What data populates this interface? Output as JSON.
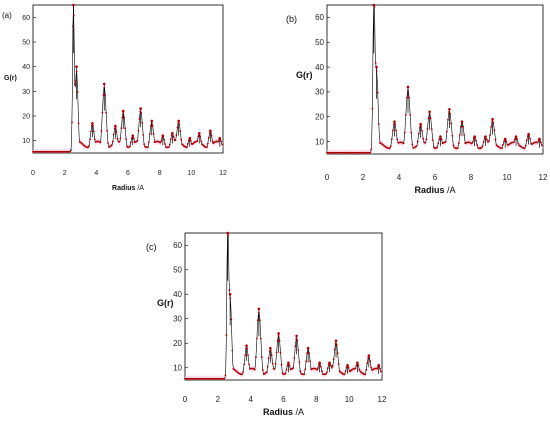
{
  "chart_data": [
    {
      "type": "line",
      "panel_label": "(a)",
      "xlabel": "Radius",
      "xunit": "/A",
      "ylabel": "G(r)",
      "xlim": [
        0,
        12
      ],
      "ylim": [
        5,
        65
      ],
      "xticks": [
        "0",
        "2",
        "4",
        "6",
        "8",
        "10",
        "12"
      ],
      "yticks": [
        "10",
        "20",
        "30",
        "40",
        "50",
        "60"
      ],
      "series_color": "#b00000",
      "baseline": 5.5,
      "start_r": 2.35,
      "peaks": [
        {
          "r": 2.55,
          "g": 65
        },
        {
          "r": 2.75,
          "g": 40
        },
        {
          "r": 3.75,
          "g": 17
        },
        {
          "r": 4.5,
          "g": 33
        },
        {
          "r": 5.2,
          "g": 16
        },
        {
          "r": 5.7,
          "g": 22
        },
        {
          "r": 6.3,
          "g": 12
        },
        {
          "r": 6.8,
          "g": 23
        },
        {
          "r": 7.5,
          "g": 18
        },
        {
          "r": 8.2,
          "g": 12
        },
        {
          "r": 8.8,
          "g": 13
        },
        {
          "r": 9.2,
          "g": 18
        },
        {
          "r": 9.9,
          "g": 11
        },
        {
          "r": 10.5,
          "g": 13
        },
        {
          "r": 11.2,
          "g": 14
        },
        {
          "r": 11.8,
          "g": 11
        }
      ]
    },
    {
      "type": "line",
      "panel_label": "(b)",
      "xlabel": "Radius",
      "xunit": "/A",
      "ylabel": "G(r)",
      "xlim": [
        0,
        12
      ],
      "ylim": [
        5,
        65
      ],
      "xticks": [
        "0",
        "2",
        "4",
        "6",
        "8",
        "10",
        "12"
      ],
      "yticks": [
        "10",
        "20",
        "30",
        "40",
        "50",
        "60"
      ],
      "series_color": "#b00000",
      "baseline": 5.5,
      "start_r": 2.4,
      "peaks": [
        {
          "r": 2.6,
          "g": 65
        },
        {
          "r": 2.75,
          "g": 40
        },
        {
          "r": 3.75,
          "g": 18
        },
        {
          "r": 4.5,
          "g": 32
        },
        {
          "r": 5.2,
          "g": 17
        },
        {
          "r": 5.7,
          "g": 22
        },
        {
          "r": 6.3,
          "g": 12
        },
        {
          "r": 6.8,
          "g": 23
        },
        {
          "r": 7.5,
          "g": 18
        },
        {
          "r": 8.2,
          "g": 12
        },
        {
          "r": 8.8,
          "g": 12
        },
        {
          "r": 9.2,
          "g": 19
        },
        {
          "r": 9.9,
          "g": 11
        },
        {
          "r": 10.5,
          "g": 12
        },
        {
          "r": 11.2,
          "g": 13
        },
        {
          "r": 11.8,
          "g": 11
        }
      ]
    },
    {
      "type": "line",
      "panel_label": "(c)",
      "xlabel": "Radius",
      "xunit": "/A",
      "ylabel": "G(r)",
      "xlim": [
        0,
        12
      ],
      "ylim": [
        5,
        65
      ],
      "xticks": [
        "0",
        "2",
        "4",
        "6",
        "8",
        "10",
        "12"
      ],
      "yticks": [
        "10",
        "20",
        "30",
        "40",
        "50",
        "60"
      ],
      "series_color": "#b00000",
      "baseline": 5.5,
      "start_r": 2.4,
      "peaks": [
        {
          "r": 2.6,
          "g": 65
        },
        {
          "r": 2.75,
          "g": 40
        },
        {
          "r": 3.75,
          "g": 19
        },
        {
          "r": 4.5,
          "g": 34
        },
        {
          "r": 5.2,
          "g": 18
        },
        {
          "r": 5.7,
          "g": 24
        },
        {
          "r": 6.3,
          "g": 12
        },
        {
          "r": 6.8,
          "g": 23
        },
        {
          "r": 7.5,
          "g": 18
        },
        {
          "r": 8.2,
          "g": 12
        },
        {
          "r": 8.8,
          "g": 12
        },
        {
          "r": 9.2,
          "g": 21
        },
        {
          "r": 9.9,
          "g": 11
        },
        {
          "r": 10.5,
          "g": 12
        },
        {
          "r": 11.2,
          "g": 15
        },
        {
          "r": 11.8,
          "g": 11
        }
      ]
    }
  ]
}
